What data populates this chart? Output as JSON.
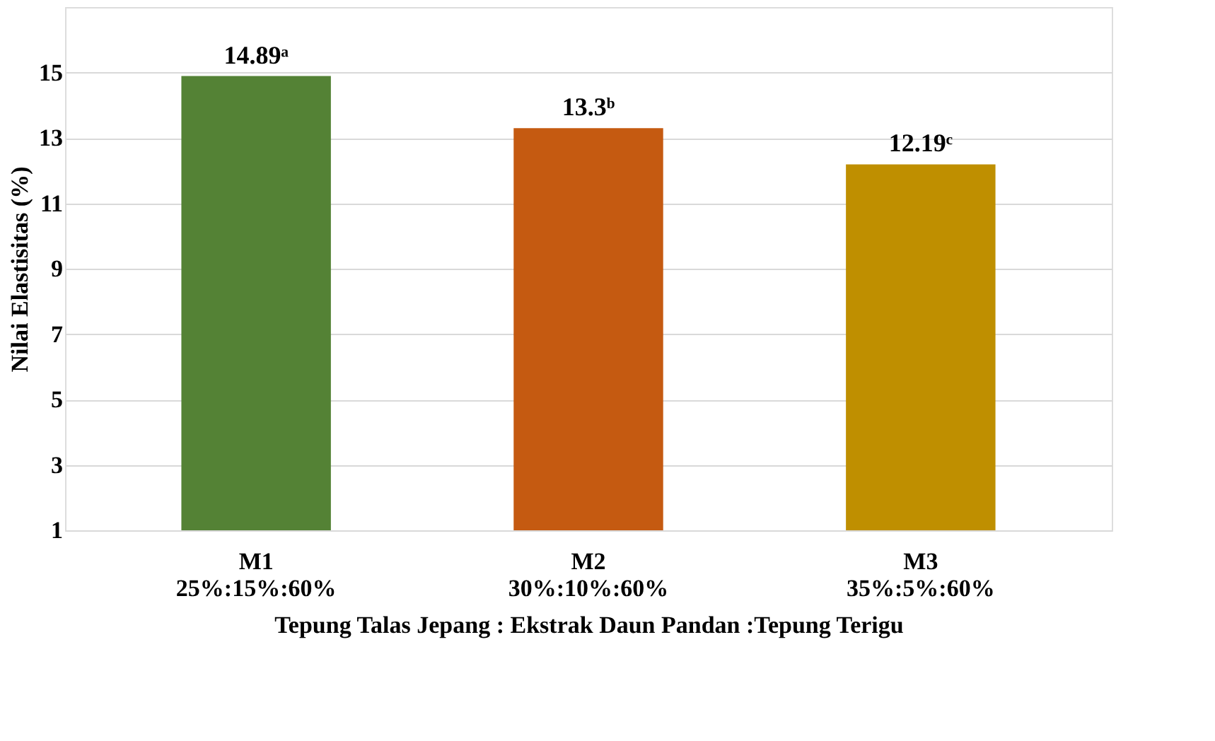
{
  "chart_data": {
    "type": "bar",
    "xlabel": "Tepung Talas Jepang : Ekstrak Daun Pandan :Tepung Terigu",
    "ylabel": "Nilai Elastisitas (%)",
    "categories": [
      "M1\n25%:15%:60%",
      "M2\n30%:10%:60%",
      "M3\n35%:5%:60%"
    ],
    "values": [
      14.89,
      13.3,
      12.19
    ],
    "colors": [
      "#548235",
      "#c55a11",
      "#bf8f00"
    ],
    "value_labels": [
      "14.89ᵃ",
      "13.3ᵇ",
      "12.19ᶜ"
    ],
    "ylim": [
      1,
      17
    ],
    "yticks": [
      1,
      3,
      5,
      7,
      9,
      11,
      13,
      15
    ],
    "grid": "y"
  }
}
